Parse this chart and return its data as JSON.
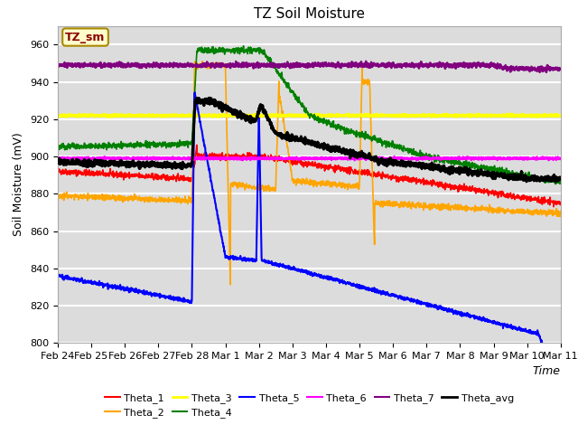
{
  "title": "TZ Soil Moisture",
  "xlabel": "Time",
  "ylabel": "Soil Moisture (mV)",
  "ylim": [
    800,
    970
  ],
  "xlim": [
    0,
    15
  ],
  "background_color": "#dcdcdc",
  "grid_color": "white",
  "legend_labels": [
    "Theta_1",
    "Theta_2",
    "Theta_3",
    "Theta_4",
    "Theta_5",
    "Theta_6",
    "Theta_7",
    "Theta_avg"
  ],
  "legend_colors": [
    "red",
    "orange",
    "yellow",
    "green",
    "blue",
    "magenta",
    "purple",
    "black"
  ],
  "xtick_labels": [
    "Feb 24",
    "Feb 25",
    "Feb 26",
    "Feb 27",
    "Feb 28",
    "Mar 1",
    "Mar 2",
    "Mar 3",
    "Mar 4",
    "Mar 5",
    "Mar 6",
    "Mar 7",
    "Mar 8",
    "Mar 9",
    "Mar 10",
    "Mar 11"
  ],
  "xtick_positions": [
    0,
    1,
    2,
    3,
    4,
    5,
    6,
    7,
    8,
    9,
    10,
    11,
    12,
    13,
    14,
    15
  ],
  "annotation_text": "TZ_sm",
  "annotation_color": "#8b0000",
  "annotation_bg": "#ffffcc",
  "annotation_border": "#aa8800"
}
